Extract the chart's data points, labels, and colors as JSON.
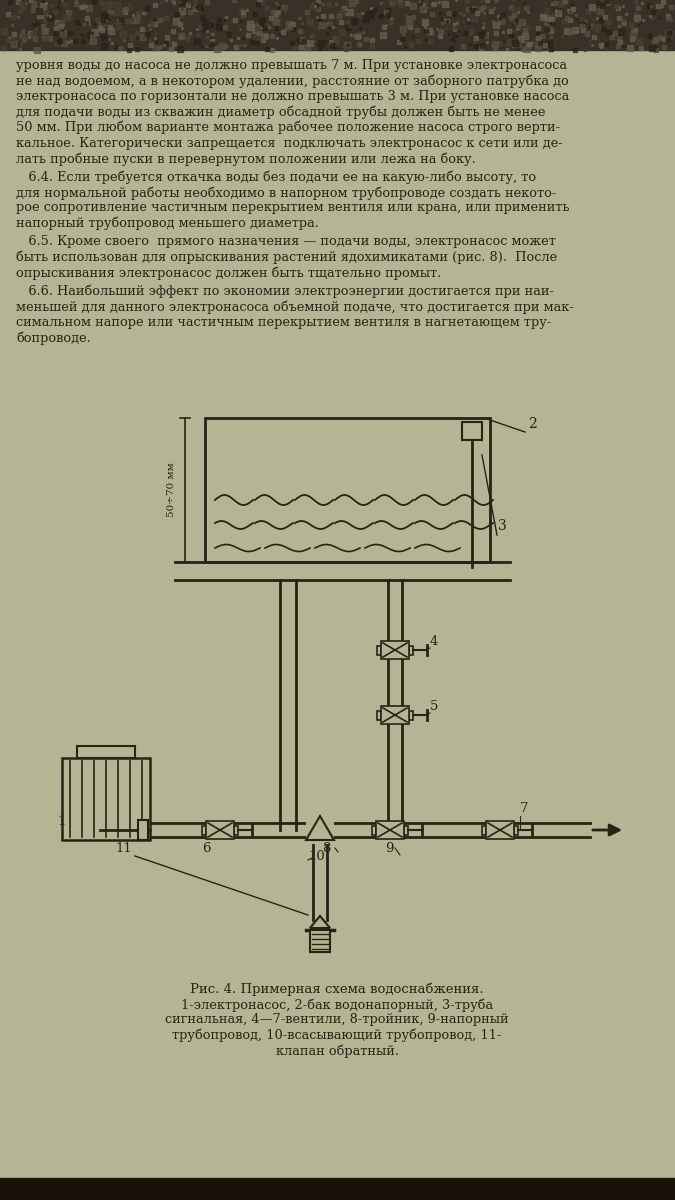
{
  "bg_top_color": "#5a5040",
  "bg_color": "#b5b595",
  "text_color": "#252515",
  "para1_lines": [
    "уровня воды до насоса не должно превышать 7 м. При установке электронасоса",
    "не над водоемом, а в некотором удалении, расстояние от заборного патрубка до",
    "электронасоса по горизонтали не должно превышать 3 м. При установке насоса",
    "для подачи воды из скважин диаметр обсадной трубы должен быть не менее",
    "50 мм. При любом варианте монтажа рабочее положение насоса строго верти-",
    "кальное. Категорически запрещается  подключать электронасос к сети или де-",
    "лать пробные пуски в перевернутом положении или лежа на боку."
  ],
  "para2_lines": [
    "   6.4. Если требуется откачка воды без подачи ее на какую-либо высоту, то",
    "для нормальной работы необходимо в напорном трубопроводе создать некото-",
    "рое сопротивление частичным перекрытием вентиля или крана, или применить",
    "напорный трубопровод меньшего диаметра."
  ],
  "para3_lines": [
    "   6.5. Кроме своего  прямого назначения — подачи воды, электронасос может",
    "быть использован для опрыскивания растений ядохимикатами (рис. 8).  После",
    "опрыскивания электронасос должен быть тщательно промыт."
  ],
  "para4_lines": [
    "   6.6. Наибольший эффект по экономии электроэнергии достигается при наи-",
    "меньшей для данного электронасоса объемной подаче, что достигается при мак-",
    "симальном напоре или частичным перекрытием вентиля в нагнетающем тру-",
    "бопроводе."
  ],
  "caption_title": "Рис. 4. Примерная схема водоснабжения.",
  "caption_line1": "1-электронасос, 2-бак водонапорный, 3-труба",
  "caption_line2": "сигнальная, 4—7-вентили, 8-тройник, 9-напорный",
  "caption_line3": "трубопровод, 10-всасывающий трубопровод, 11-",
  "caption_line4": "клапан обратный.",
  "dim_label": "50÷70 мм"
}
